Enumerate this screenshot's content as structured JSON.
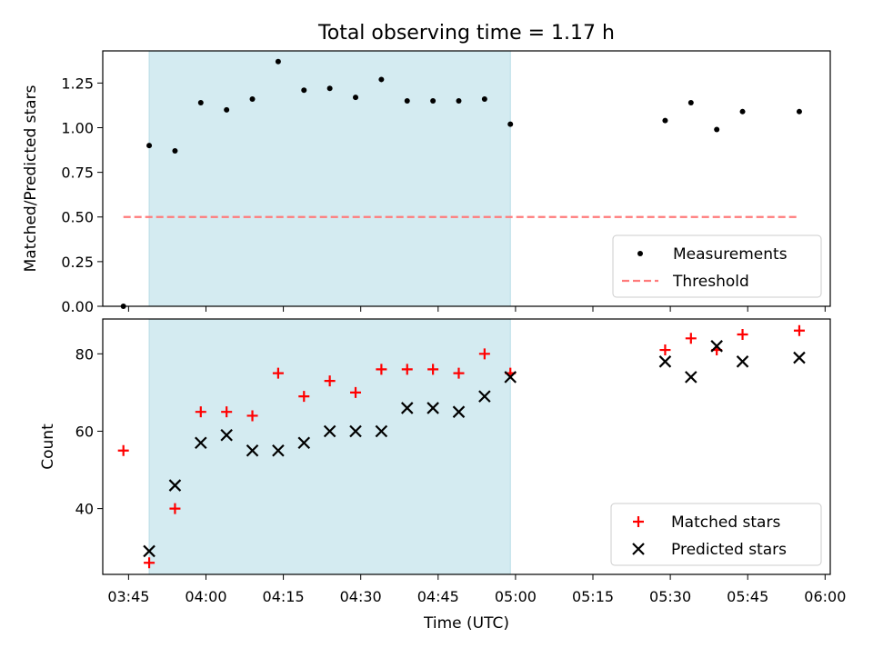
{
  "chart_data": [
    {
      "type": "scatter",
      "title": "Total observing time = 1.17 h",
      "ylabel": "Matched/Predicted stars",
      "ylim": [
        0,
        1.43
      ],
      "yticks": [
        0.0,
        0.25,
        0.5,
        0.75,
        1.0,
        1.25
      ],
      "ytick_labels": [
        "0.00",
        "0.25",
        "0.50",
        "0.75",
        "1.00",
        "1.25"
      ],
      "xlim": [
        "03:40",
        "06:01"
      ],
      "shaded_span": [
        "03:49",
        "04:59"
      ],
      "shade_color": "#d4ebf1",
      "series": [
        {
          "name": "Measurements",
          "marker": "dot",
          "color": "#000000",
          "x": [
            "03:44",
            "03:49",
            "03:54",
            "03:59",
            "04:04",
            "04:09",
            "04:14",
            "04:19",
            "04:24",
            "04:29",
            "04:34",
            "04:39",
            "04:44",
            "04:49",
            "04:54",
            "04:59",
            "05:29",
            "05:34",
            "05:39",
            "05:44",
            "05:55"
          ],
          "y": [
            0.0,
            0.9,
            0.87,
            1.14,
            1.1,
            1.16,
            1.37,
            1.21,
            1.22,
            1.17,
            1.27,
            1.15,
            1.15,
            1.15,
            1.16,
            1.02,
            1.04,
            1.14,
            0.99,
            1.09,
            1.09
          ]
        }
      ],
      "threshold": {
        "name": "Threshold",
        "y": 0.5,
        "x": [
          "03:44",
          "05:55"
        ],
        "color": "#ff7b7b"
      },
      "legend": {
        "placement": "lower-right",
        "items": [
          "Measurements",
          "Threshold"
        ]
      }
    },
    {
      "type": "scatter",
      "xlabel": "Time (UTC)",
      "ylabel": "Count",
      "ylim": [
        23,
        89
      ],
      "yticks": [
        40,
        60,
        80
      ],
      "ytick_labels": [
        "40",
        "60",
        "80"
      ],
      "xlim": [
        "03:40",
        "06:01"
      ],
      "xticks": [
        "03:45",
        "04:00",
        "04:15",
        "04:30",
        "04:45",
        "05:00",
        "05:15",
        "05:30",
        "05:45",
        "06:00"
      ],
      "shaded_span": [
        "03:49",
        "04:59"
      ],
      "series": [
        {
          "name": "Matched stars",
          "marker": "plus",
          "color": "#ff0000",
          "x": [
            "03:44",
            "03:49",
            "03:54",
            "03:59",
            "04:04",
            "04:09",
            "04:14",
            "04:19",
            "04:24",
            "04:29",
            "04:34",
            "04:39",
            "04:44",
            "04:49",
            "04:54",
            "04:59",
            "05:29",
            "05:34",
            "05:39",
            "05:44",
            "05:55"
          ],
          "y": [
            55,
            26,
            40,
            65,
            65,
            64,
            75,
            69,
            73,
            70,
            76,
            76,
            76,
            75,
            80,
            75,
            81,
            84,
            81,
            85,
            86
          ]
        },
        {
          "name": "Predicted stars",
          "marker": "x",
          "color": "#000000",
          "x": [
            "03:49",
            "03:54",
            "03:59",
            "04:04",
            "04:09",
            "04:14",
            "04:19",
            "04:24",
            "04:29",
            "04:34",
            "04:39",
            "04:44",
            "04:49",
            "04:54",
            "04:59",
            "05:29",
            "05:34",
            "05:39",
            "05:44",
            "05:55"
          ],
          "y": [
            29,
            46,
            57,
            59,
            55,
            55,
            57,
            60,
            60,
            60,
            66,
            66,
            65,
            69,
            74,
            78,
            74,
            82,
            78,
            79
          ]
        }
      ],
      "legend": {
        "placement": "lower-right",
        "items": [
          "Matched stars",
          "Predicted stars"
        ]
      }
    }
  ]
}
